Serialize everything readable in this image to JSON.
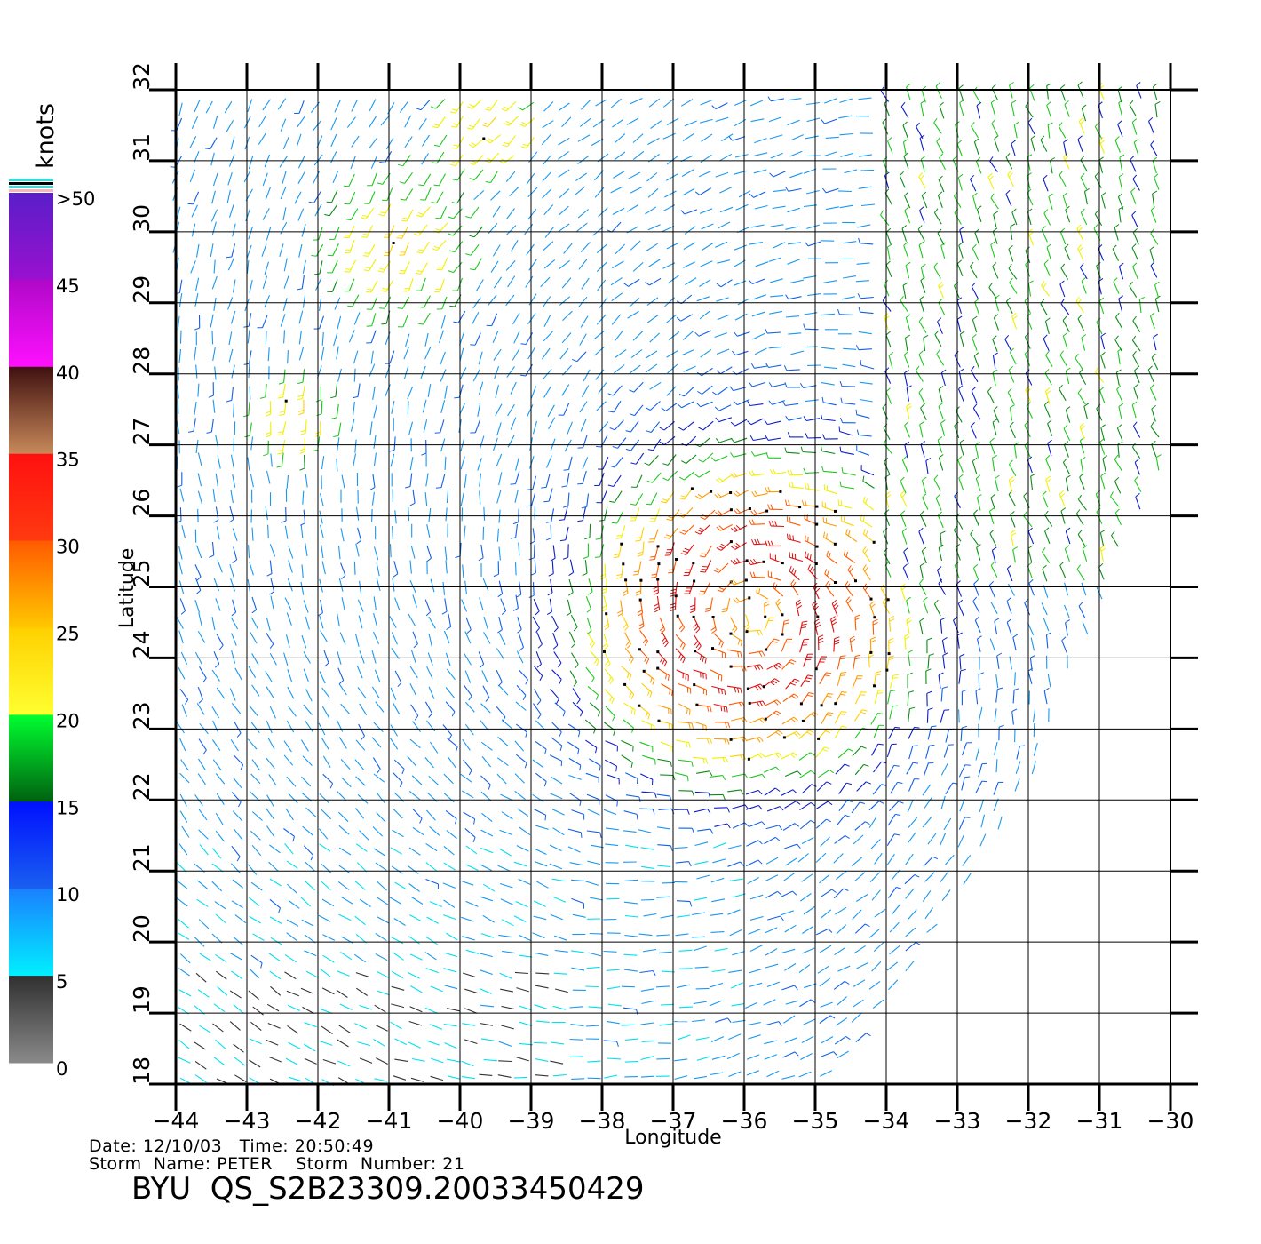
{
  "chart_data": {
    "type": "wind-barb-map",
    "xlabel": "Longitude",
    "ylabel": "Latitude",
    "x_ticks": [
      "−44",
      "−43",
      "−42",
      "−41",
      "−40",
      "−39",
      "−38",
      "−37",
      "−36",
      "−35",
      "−34",
      "−33",
      "−32",
      "−31",
      "−30"
    ],
    "x_values": [
      -44,
      -43,
      -42,
      -41,
      -40,
      -39,
      -38,
      -37,
      -36,
      -35,
      -34,
      -33,
      -32,
      -31,
      -30
    ],
    "y_ticks": [
      "18",
      "19",
      "20",
      "21",
      "22",
      "23",
      "24",
      "25",
      "26",
      "27",
      "28",
      "29",
      "30",
      "31",
      "32"
    ],
    "y_values": [
      18,
      19,
      20,
      21,
      22,
      23,
      24,
      25,
      26,
      27,
      28,
      29,
      30,
      31,
      32
    ],
    "xlim": [
      -44,
      -30
    ],
    "ylim": [
      18,
      32
    ],
    "grid": true,
    "storm_center": {
      "lon": -35.9,
      "lat": 24.6
    },
    "speed_unit": "knots",
    "colorbar": {
      "title": "knots",
      "labels": [
        ">50",
        "45",
        "40",
        "35",
        "30",
        "25",
        "20",
        "15",
        "10",
        "5",
        "0"
      ],
      "bands": [
        {
          "min": 45,
          "max": 50,
          "colors": [
            "#5a1ec8",
            "#9a10d0"
          ]
        },
        {
          "min": 40,
          "max": 45,
          "colors": [
            "#b008c8",
            "#ff10ff"
          ]
        },
        {
          "min": 35,
          "max": 40,
          "colors": [
            "#401010",
            "#c88a5a"
          ]
        },
        {
          "min": 30,
          "max": 35,
          "colors": [
            "#ff1010",
            "#ff3a10"
          ]
        },
        {
          "min": 25,
          "max": 30,
          "colors": [
            "#ff5a00",
            "#ffc800"
          ]
        },
        {
          "min": 20,
          "max": 25,
          "colors": [
            "#ffd000",
            "#ffff30"
          ]
        },
        {
          "min": 15,
          "max": 20,
          "colors": [
            "#00ff30",
            "#006010"
          ]
        },
        {
          "min": 10,
          "max": 15,
          "colors": [
            "#0010ff",
            "#1a60f0"
          ]
        },
        {
          "min": 5,
          "max": 10,
          "colors": [
            "#1a80ff",
            "#00f0ff"
          ]
        },
        {
          "min": 0,
          "max": 5,
          "colors": [
            "#303030",
            "#8a8a8a"
          ]
        }
      ]
    }
  },
  "footer": {
    "date_line": "Date: 12/10/03   Time: 20:50:49",
    "storm_line": "Storm  Name: PETER    Storm  Number: 21",
    "title": "BYU  QS_S2B23309.20033450429"
  }
}
